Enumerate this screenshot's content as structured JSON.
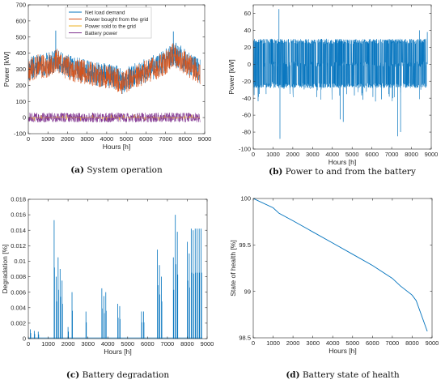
{
  "colors": {
    "net_load": "#0072BD",
    "bought": "#D95319",
    "sold": "#EDB120",
    "battery": "#7E2F8E",
    "single": "#0072BD"
  },
  "chart_data": [
    {
      "id": "a",
      "type": "line",
      "caption_label": "(a)",
      "caption_text": "System operation",
      "xlabel": "Hours [h]",
      "ylabel": "Power [kW]",
      "xlim": [
        0,
        9000
      ],
      "ylim": [
        -100,
        700
      ],
      "xticks": [
        0,
        1000,
        2000,
        3000,
        4000,
        5000,
        6000,
        7000,
        8000,
        9000
      ],
      "yticks": [
        -100,
        0,
        100,
        200,
        300,
        400,
        500,
        600,
        700
      ],
      "legend_position": "top-center",
      "series": [
        {
          "name": "Net load demand",
          "color_key": "net_load",
          "points": [
            [
              0,
              300
            ],
            [
              500,
              330
            ],
            [
              1000,
              330
            ],
            [
              1300,
              350
            ],
            [
              1400,
              380
            ],
            [
              1600,
              340
            ],
            [
              2000,
              320
            ],
            [
              2500,
              300
            ],
            [
              3000,
              290
            ],
            [
              3500,
              270
            ],
            [
              4000,
              260
            ],
            [
              4500,
              250
            ],
            [
              4800,
              220
            ],
            [
              5000,
              240
            ],
            [
              5500,
              270
            ],
            [
              6000,
              290
            ],
            [
              6500,
              320
            ],
            [
              7000,
              350
            ],
            [
              7400,
              400
            ],
            [
              7800,
              370
            ],
            [
              8200,
              330
            ],
            [
              8760,
              290
            ]
          ],
          "peaks": [
            [
              1400,
              540
            ],
            [
              7400,
              535
            ]
          ]
        },
        {
          "name": "Power bought from the grid",
          "color_key": "bought",
          "points": [
            [
              0,
              290
            ],
            [
              500,
              320
            ],
            [
              1000,
              320
            ],
            [
              1300,
              340
            ],
            [
              1400,
              370
            ],
            [
              1600,
              330
            ],
            [
              2000,
              310
            ],
            [
              2500,
              290
            ],
            [
              3000,
              280
            ],
            [
              3500,
              260
            ],
            [
              4000,
              250
            ],
            [
              4500,
              240
            ],
            [
              4800,
              210
            ],
            [
              5000,
              230
            ],
            [
              5500,
              260
            ],
            [
              6000,
              280
            ],
            [
              6500,
              310
            ],
            [
              7000,
              340
            ],
            [
              7400,
              390
            ],
            [
              7800,
              360
            ],
            [
              8200,
              320
            ],
            [
              8760,
              280
            ]
          ]
        },
        {
          "name": "Power sold to the grid",
          "color_key": "sold",
          "points": [
            [
              0,
              0
            ],
            [
              8760,
              0
            ]
          ]
        },
        {
          "name": "Battery power",
          "color_key": "battery",
          "points": [
            [
              0,
              0
            ],
            [
              8760,
              0
            ]
          ],
          "range": [
            -30,
            30
          ]
        }
      ]
    },
    {
      "id": "b",
      "type": "line",
      "caption_label": "(b)",
      "caption_text": "Power to and from the battery",
      "xlabel": "Hours [h]",
      "ylabel": "Power [kW]",
      "xlim": [
        0,
        9000
      ],
      "ylim": [
        -100,
        70
      ],
      "xticks": [
        0,
        1000,
        2000,
        3000,
        4000,
        5000,
        6000,
        7000,
        8000,
        9000
      ],
      "yticks": [
        -100,
        -80,
        -60,
        -40,
        -20,
        0,
        20,
        40,
        60
      ],
      "series": [
        {
          "name": "",
          "color_key": "single",
          "band": [
            -28,
            30
          ],
          "spikes": [
            [
              1300,
              65
            ],
            [
              1350,
              -88
            ],
            [
              4550,
              -68
            ],
            [
              4400,
              -65
            ],
            [
              7300,
              -85
            ],
            [
              7450,
              -80
            ],
            [
              7050,
              -40
            ],
            [
              8800,
              38
            ],
            [
              8400,
              40
            ]
          ]
        }
      ]
    },
    {
      "id": "c",
      "type": "line",
      "caption_label": "(c)",
      "caption_text": "Battery degradation",
      "xlabel": "Hours [h]",
      "ylabel": "Degradation [%]",
      "xlim": [
        0,
        9000
      ],
      "ylim": [
        0,
        0.018
      ],
      "xticks": [
        0,
        1000,
        2000,
        3000,
        4000,
        5000,
        6000,
        7000,
        8000,
        9000
      ],
      "yticks": [
        0,
        0.002,
        0.004,
        0.006,
        0.008,
        0.01,
        0.012,
        0.014,
        0.016,
        0.018
      ],
      "series": [
        {
          "name": "",
          "color_key": "single",
          "spikes": [
            [
              100,
              0.0012
            ],
            [
              300,
              0.001
            ],
            [
              500,
              0.0009
            ],
            [
              1300,
              0.0153
            ],
            [
              1400,
              0.008
            ],
            [
              1500,
              0.0105
            ],
            [
              1600,
              0.009
            ],
            [
              1700,
              0.0075
            ],
            [
              2000,
              0.0015
            ],
            [
              2200,
              0.006
            ],
            [
              2900,
              0.0035
            ],
            [
              3700,
              0.0065
            ],
            [
              3800,
              0.0055
            ],
            [
              3900,
              0.006
            ],
            [
              4500,
              0.0045
            ],
            [
              4600,
              0.0042
            ],
            [
              5700,
              0.0035
            ],
            [
              5800,
              0.0035
            ],
            [
              6500,
              0.0115
            ],
            [
              6600,
              0.0095
            ],
            [
              6700,
              0.008
            ],
            [
              7300,
              0.0105
            ],
            [
              7400,
              0.016
            ],
            [
              7500,
              0.0138
            ],
            [
              8000,
              0.0125
            ],
            [
              8100,
              0.011
            ],
            [
              8200,
              0.0142
            ],
            [
              8300,
              0.014
            ],
            [
              8400,
              0.0142
            ],
            [
              8500,
              0.0142
            ],
            [
              8600,
              0.0142
            ],
            [
              8700,
              0.0142
            ]
          ]
        }
      ]
    },
    {
      "id": "d",
      "type": "line",
      "caption_label": "(d)",
      "caption_text": "Battery state of health",
      "xlabel": "Hours [h]",
      "ylabel": "State of health [%]",
      "xlim": [
        0,
        9000
      ],
      "ylim": [
        98.5,
        100
      ],
      "xticks": [
        0,
        1000,
        2000,
        3000,
        4000,
        5000,
        6000,
        7000,
        8000,
        9000
      ],
      "yticks": [
        98.5,
        99,
        99.5,
        100
      ],
      "ytick_labels": [
        "98.5",
        "99",
        "99.5",
        "100"
      ],
      "series": [
        {
          "name": "",
          "color_key": "single",
          "points": [
            [
              0,
              100
            ],
            [
              1000,
              99.9
            ],
            [
              1300,
              99.84
            ],
            [
              2000,
              99.76
            ],
            [
              3000,
              99.64
            ],
            [
              4000,
              99.52
            ],
            [
              5000,
              99.4
            ],
            [
              6000,
              99.28
            ],
            [
              7000,
              99.14
            ],
            [
              7400,
              99.06
            ],
            [
              8000,
              98.96
            ],
            [
              8200,
              98.9
            ],
            [
              8760,
              98.57
            ]
          ]
        }
      ]
    }
  ]
}
